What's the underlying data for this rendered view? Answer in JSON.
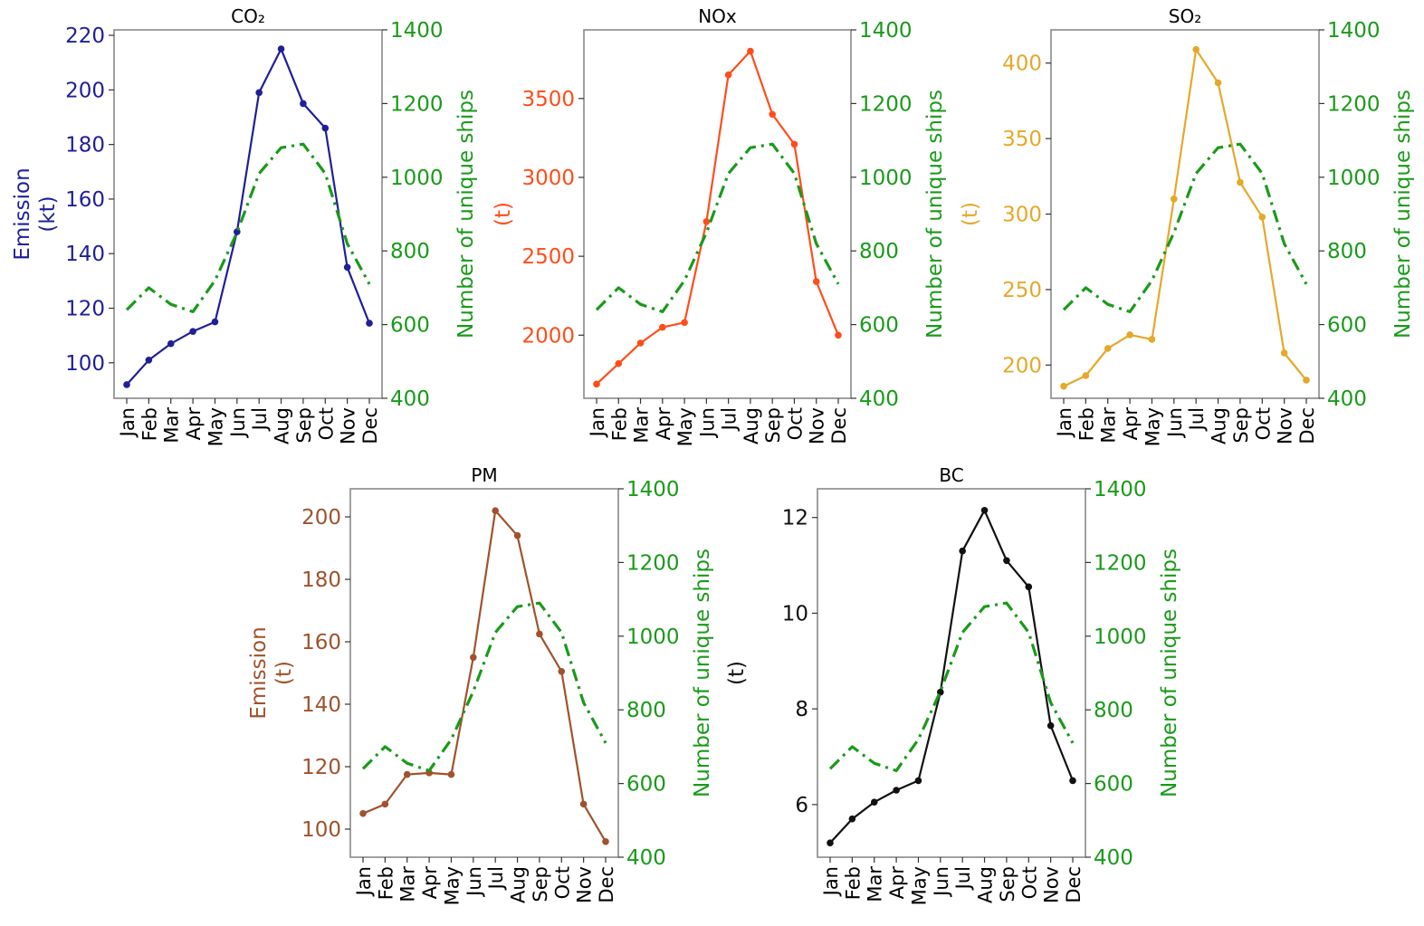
{
  "chart_data": [
    {
      "type": "line",
      "title": "CO₂",
      "ylabel": "Emission\n(kt)",
      "y2label": "Number of unique ships",
      "color": "#1f1f9a",
      "ships_color": "#1a9a1a",
      "categories": [
        "Jan",
        "Feb",
        "Mar",
        "Apr",
        "May",
        "Jun",
        "Jul",
        "Aug",
        "Sep",
        "Oct",
        "Nov",
        "Dec"
      ],
      "ylim": [
        87,
        222
      ],
      "yticks": [
        100,
        120,
        140,
        160,
        180,
        200,
        220
      ],
      "y2lim": [
        400,
        1400
      ],
      "y2ticks": [
        400,
        600,
        800,
        1000,
        1200,
        1400
      ],
      "series": [
        {
          "name": "Emission",
          "axis": "left",
          "style": "solid-marker",
          "values": [
            92,
            101,
            107,
            111.5,
            115,
            148,
            199,
            215,
            195,
            186,
            135,
            114.5
          ]
        },
        {
          "name": "Number of unique ships",
          "axis": "right",
          "style": "dash-dot",
          "values": [
            640,
            700,
            655,
            635,
            720,
            850,
            1010,
            1080,
            1090,
            1010,
            820,
            710
          ]
        }
      ]
    },
    {
      "type": "line",
      "title": "NOx",
      "ylabel": "(t)",
      "y2label": "Number of unique ships",
      "color": "#ff4d1a",
      "ships_color": "#1a9a1a",
      "categories": [
        "Jan",
        "Feb",
        "Mar",
        "Apr",
        "May",
        "Jun",
        "Jul",
        "Aug",
        "Sep",
        "Oct",
        "Nov",
        "Dec"
      ],
      "ylim": [
        1600,
        3935
      ],
      "yticks": [
        2000,
        2500,
        3000,
        3500
      ],
      "y2lim": [
        400,
        1400
      ],
      "y2ticks": [
        400,
        600,
        800,
        1000,
        1200,
        1400
      ],
      "series": [
        {
          "name": "Emission",
          "axis": "left",
          "style": "solid-marker",
          "values": [
            1690,
            1820,
            1950,
            2050,
            2080,
            2720,
            3650,
            3800,
            3400,
            3210,
            2340,
            2000
          ]
        },
        {
          "name": "Number of unique ships",
          "axis": "right",
          "style": "dash-dot",
          "values": [
            640,
            700,
            655,
            635,
            720,
            850,
            1010,
            1080,
            1090,
            1010,
            820,
            710
          ]
        }
      ]
    },
    {
      "type": "line",
      "title": "SO₂",
      "ylabel": "(t)",
      "y2label": "Number of unique ships",
      "color": "#e5a82a",
      "ships_color": "#1a9a1a",
      "categories": [
        "Jan",
        "Feb",
        "Mar",
        "Apr",
        "May",
        "Jun",
        "Jul",
        "Aug",
        "Sep",
        "Oct",
        "Nov",
        "Dec"
      ],
      "ylim": [
        178,
        422
      ],
      "yticks": [
        200,
        250,
        300,
        350,
        400
      ],
      "y2lim": [
        400,
        1400
      ],
      "y2ticks": [
        400,
        600,
        800,
        1000,
        1200,
        1400
      ],
      "series": [
        {
          "name": "Emission",
          "axis": "left",
          "style": "solid-marker",
          "values": [
            186,
            193,
            211,
            220,
            217,
            310,
            409,
            387,
            321,
            298,
            208,
            190
          ]
        },
        {
          "name": "Number of unique ships",
          "axis": "right",
          "style": "dash-dot",
          "values": [
            640,
            700,
            655,
            635,
            720,
            850,
            1010,
            1080,
            1090,
            1010,
            820,
            710
          ]
        }
      ]
    },
    {
      "type": "line",
      "title": "PM",
      "ylabel": "Emission\n(t)",
      "y2label": "Number of unique ships",
      "color": "#a0522d",
      "ships_color": "#1a9a1a",
      "categories": [
        "Jan",
        "Feb",
        "Mar",
        "Apr",
        "May",
        "Jun",
        "Jul",
        "Aug",
        "Sep",
        "Oct",
        "Nov",
        "Dec"
      ],
      "ylim": [
        91,
        209
      ],
      "yticks": [
        100,
        120,
        140,
        160,
        180,
        200
      ],
      "y2lim": [
        400,
        1400
      ],
      "y2ticks": [
        400,
        600,
        800,
        1000,
        1200,
        1400
      ],
      "series": [
        {
          "name": "Emission",
          "axis": "left",
          "style": "solid-marker",
          "values": [
            105,
            108,
            117.5,
            118,
            117.5,
            155,
            202,
            194,
            162.5,
            150.5,
            108,
            96
          ]
        },
        {
          "name": "Number of unique ships",
          "axis": "right",
          "style": "dash-dot",
          "values": [
            640,
            700,
            655,
            635,
            720,
            850,
            1010,
            1080,
            1090,
            1010,
            820,
            710
          ]
        }
      ]
    },
    {
      "type": "line",
      "title": "BC",
      "ylabel": "(t)",
      "y2label": "Number of unique ships",
      "color": "#111111",
      "ships_color": "#1a9a1a",
      "categories": [
        "Jan",
        "Feb",
        "Mar",
        "Apr",
        "May",
        "Jun",
        "Jul",
        "Aug",
        "Sep",
        "Oct",
        "Nov",
        "Dec"
      ],
      "ylim": [
        4.9,
        12.6
      ],
      "yticks": [
        6,
        8,
        10,
        12
      ],
      "y2lim": [
        400,
        1400
      ],
      "y2ticks": [
        400,
        600,
        800,
        1000,
        1200,
        1400
      ],
      "series": [
        {
          "name": "Emission",
          "axis": "left",
          "style": "solid-marker",
          "values": [
            5.2,
            5.7,
            6.05,
            6.3,
            6.5,
            8.35,
            11.3,
            12.15,
            11.1,
            10.55,
            7.65,
            6.5
          ]
        },
        {
          "name": "Number of unique ships",
          "axis": "right",
          "style": "dash-dot",
          "values": [
            640,
            700,
            655,
            635,
            720,
            850,
            1010,
            1080,
            1090,
            1010,
            820,
            710
          ]
        }
      ]
    }
  ]
}
